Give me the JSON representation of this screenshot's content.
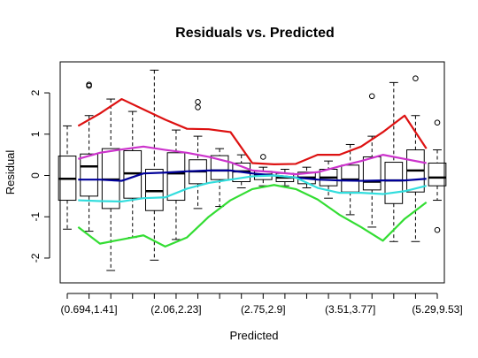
{
  "chart_data": {
    "type": "boxplot",
    "title": "Residuals vs. Predicted",
    "xlabel": "Predicted",
    "ylabel": "Residual",
    "ylim": [
      -2.6,
      2.75
    ],
    "yticks": [
      -2,
      -1,
      0,
      1,
      2
    ],
    "n_groups": 18,
    "xtick_labels": [
      {
        "position": 2,
        "label": "(0.694,1.41]"
      },
      {
        "position": 6,
        "label": "(2.06,2.23]"
      },
      {
        "position": 10,
        "label": "(2.75,2.9]"
      },
      {
        "position": 14,
        "label": "(3.51,3.77]"
      },
      {
        "position": 18,
        "label": "(5.29,9.53]"
      }
    ],
    "boxes": [
      {
        "whisker_low": -1.3,
        "q1": -0.6,
        "median": -0.08,
        "q3": 0.47,
        "whisker_high": 1.2,
        "outliers": []
      },
      {
        "whisker_low": -1.35,
        "q1": -0.5,
        "median": 0.22,
        "q3": 0.52,
        "whisker_high": 1.45,
        "outliers": [
          2.17,
          2.2
        ]
      },
      {
        "whisker_low": -2.3,
        "q1": -0.8,
        "median": -0.1,
        "q3": 0.65,
        "whisker_high": 1.85,
        "outliers": []
      },
      {
        "whisker_low": -1.5,
        "q1": -0.55,
        "median": 0.05,
        "q3": 0.6,
        "whisker_high": 1.55,
        "outliers": []
      },
      {
        "whisker_low": -2.05,
        "q1": -0.85,
        "median": -0.38,
        "q3": 0.15,
        "whisker_high": 2.55,
        "outliers": []
      },
      {
        "whisker_low": -1.55,
        "q1": -0.6,
        "median": 0.05,
        "q3": 0.55,
        "whisker_high": 1.1,
        "outliers": []
      },
      {
        "whisker_low": -0.8,
        "q1": -0.2,
        "median": 0.1,
        "q3": 0.38,
        "whisker_high": 0.95,
        "outliers": [
          1.65,
          1.78
        ]
      },
      {
        "whisker_low": -0.75,
        "q1": -0.1,
        "median": 0.12,
        "q3": 0.48,
        "whisker_high": 0.65,
        "outliers": []
      },
      {
        "whisker_low": -0.3,
        "q1": -0.15,
        "median": 0.1,
        "q3": 0.3,
        "whisker_high": 0.5,
        "outliers": []
      },
      {
        "whisker_low": -0.25,
        "q1": -0.1,
        "median": 0.02,
        "q3": 0.1,
        "whisker_high": 0.2,
        "outliers": [
          0.45
        ]
      },
      {
        "whisker_low": -0.25,
        "q1": -0.15,
        "median": -0.05,
        "q3": 0.05,
        "whisker_high": 0.15,
        "outliers": []
      },
      {
        "whisker_low": -0.3,
        "q1": -0.2,
        "median": -0.05,
        "q3": 0.08,
        "whisker_high": 0.2,
        "outliers": []
      },
      {
        "whisker_low": -0.55,
        "q1": -0.25,
        "median": -0.05,
        "q3": 0.15,
        "whisker_high": 0.35,
        "outliers": []
      },
      {
        "whisker_low": -0.95,
        "q1": -0.4,
        "median": -0.1,
        "q3": 0.25,
        "whisker_high": 0.75,
        "outliers": []
      },
      {
        "whisker_low": -1.25,
        "q1": -0.35,
        "median": -0.15,
        "q3": 0.45,
        "whisker_high": 0.95,
        "outliers": [
          1.92
        ]
      },
      {
        "whisker_low": -1.6,
        "q1": -0.68,
        "median": -0.12,
        "q3": 0.32,
        "whisker_high": 2.25,
        "outliers": []
      },
      {
        "whisker_low": -1.6,
        "q1": -0.4,
        "median": 0.12,
        "q3": 0.62,
        "whisker_high": 1.45,
        "outliers": [
          2.35
        ]
      },
      {
        "whisker_low": -0.6,
        "q1": -0.25,
        "median": -0.05,
        "q3": 0.3,
        "whisker_high": 0.62,
        "outliers": [
          1.28,
          -1.32
        ]
      }
    ],
    "series": [
      {
        "color": "#dd1111",
        "values": [
          1.2,
          1.5,
          1.85,
          1.6,
          1.35,
          1.13,
          1.12,
          1.05,
          0.3,
          0.27,
          0.28,
          0.5,
          0.5,
          0.7,
          1.05,
          1.45,
          0.65
        ]
      },
      {
        "color": "#cc33cc",
        "values": [
          0.4,
          0.55,
          0.63,
          0.7,
          0.62,
          0.55,
          0.45,
          0.32,
          0.12,
          0.08,
          0.03,
          0.08,
          0.22,
          0.35,
          0.5,
          0.4,
          0.3
        ]
      },
      {
        "color": "#000099",
        "values": [
          -0.1,
          -0.1,
          -0.13,
          0.05,
          0.07,
          0.1,
          0.12,
          0.12,
          0.05,
          0.0,
          -0.05,
          -0.1,
          -0.12,
          -0.13,
          -0.12,
          -0.12,
          -0.08
        ]
      },
      {
        "color": "#33dddd",
        "values": [
          -0.6,
          -0.62,
          -0.63,
          -0.55,
          -0.53,
          -0.32,
          -0.18,
          -0.1,
          -0.02,
          0.0,
          -0.05,
          -0.3,
          -0.42,
          -0.42,
          -0.45,
          -0.38,
          -0.25
        ]
      },
      {
        "color": "#33dd33",
        "values": [
          -1.25,
          -1.65,
          -1.55,
          -1.45,
          -1.72,
          -1.5,
          -1.0,
          -0.6,
          -0.33,
          -0.23,
          -0.33,
          -0.58,
          -0.95,
          -1.25,
          -1.58,
          -1.05,
          -0.65
        ]
      }
    ]
  }
}
